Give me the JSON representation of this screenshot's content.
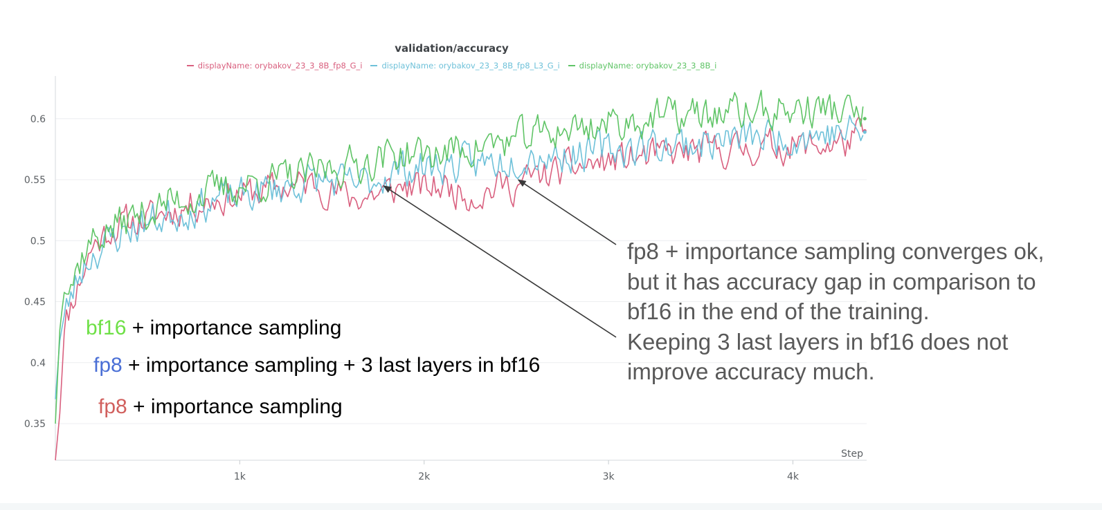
{
  "chart_data": {
    "type": "line",
    "title": "validation/accuracy",
    "xlabel": "Step",
    "ylabel": "",
    "xlim": [
      0,
      4400
    ],
    "ylim": [
      0.32,
      0.635
    ],
    "x_ticks": [
      {
        "value": 1000,
        "label": "1k"
      },
      {
        "value": 2000,
        "label": "2k"
      },
      {
        "value": 3000,
        "label": "3k"
      },
      {
        "value": 4000,
        "label": "4k"
      }
    ],
    "y_ticks": [
      {
        "value": 0.35,
        "label": "0.35"
      },
      {
        "value": 0.4,
        "label": "0.4"
      },
      {
        "value": 0.45,
        "label": "0.45"
      },
      {
        "value": 0.5,
        "label": "0.5"
      },
      {
        "value": 0.55,
        "label": "0.55"
      },
      {
        "value": 0.6,
        "label": "0.6"
      }
    ],
    "grid": true,
    "legend_position": "top-center",
    "series": [
      {
        "name": "displayName: orybakov_23_3_8B_fp8_G_i",
        "color": "#d9607f",
        "x": [
          0,
          25,
          50,
          100,
          150,
          200,
          300,
          400,
          500,
          600,
          700,
          800,
          900,
          1000,
          1100,
          1200,
          1300,
          1400,
          1500,
          1600,
          1700,
          1800,
          1900,
          2000,
          2100,
          2200,
          2300,
          2400,
          2500,
          2600,
          2700,
          2800,
          2900,
          3000,
          3100,
          3200,
          3300,
          3400,
          3500,
          3600,
          3700,
          3800,
          3900,
          4000,
          4100,
          4200,
          4300,
          4390
        ],
        "y": [
          0.32,
          0.36,
          0.43,
          0.455,
          0.475,
          0.495,
          0.51,
          0.515,
          0.518,
          0.523,
          0.528,
          0.532,
          0.535,
          0.538,
          0.54,
          0.543,
          0.545,
          0.547,
          0.542,
          0.535,
          0.537,
          0.54,
          0.545,
          0.542,
          0.545,
          0.54,
          0.538,
          0.545,
          0.545,
          0.552,
          0.555,
          0.56,
          0.562,
          0.565,
          0.567,
          0.568,
          0.57,
          0.572,
          0.573,
          0.574,
          0.575,
          0.576,
          0.577,
          0.578,
          0.578,
          0.579,
          0.58,
          0.59
        ]
      },
      {
        "name": "displayName: orybakov_23_3_8B_fp8_L3_G_i",
        "color": "#6ec1d9",
        "x": [
          0,
          25,
          50,
          100,
          150,
          200,
          300,
          400,
          500,
          600,
          700,
          800,
          900,
          1000,
          1100,
          1200,
          1300,
          1400,
          1500,
          1600,
          1700,
          1800,
          1900,
          2000,
          2100,
          2200,
          2300,
          2400,
          2500,
          2600,
          2700,
          2800,
          2900,
          3000,
          3100,
          3200,
          3300,
          3400,
          3500,
          3600,
          3700,
          3800,
          3900,
          4000,
          4100,
          4200,
          4300,
          4390
        ],
        "y": [
          0.37,
          0.42,
          0.44,
          0.46,
          0.48,
          0.49,
          0.5,
          0.51,
          0.515,
          0.52,
          0.525,
          0.53,
          0.535,
          0.535,
          0.54,
          0.543,
          0.546,
          0.55,
          0.548,
          0.545,
          0.548,
          0.555,
          0.56,
          0.56,
          0.562,
          0.562,
          0.563,
          0.565,
          0.57,
          0.572,
          0.57,
          0.572,
          0.572,
          0.575,
          0.576,
          0.578,
          0.578,
          0.58,
          0.58,
          0.582,
          0.583,
          0.585,
          0.585,
          0.586,
          0.587,
          0.588,
          0.589,
          0.589
        ]
      },
      {
        "name": "displayName: orybakov_23_3_8B_i",
        "color": "#5fc466",
        "x": [
          0,
          25,
          50,
          100,
          150,
          200,
          300,
          400,
          500,
          600,
          700,
          800,
          900,
          1000,
          1100,
          1200,
          1300,
          1400,
          1500,
          1600,
          1700,
          1800,
          1900,
          2000,
          2100,
          2200,
          2300,
          2400,
          2500,
          2600,
          2700,
          2800,
          2900,
          3000,
          3100,
          3200,
          3300,
          3400,
          3500,
          3600,
          3700,
          3800,
          3900,
          4000,
          4100,
          4200,
          4300,
          4390
        ],
        "y": [
          0.35,
          0.43,
          0.46,
          0.47,
          0.49,
          0.5,
          0.51,
          0.518,
          0.523,
          0.53,
          0.535,
          0.538,
          0.542,
          0.545,
          0.548,
          0.55,
          0.552,
          0.555,
          0.56,
          0.562,
          0.565,
          0.57,
          0.572,
          0.57,
          0.572,
          0.575,
          0.578,
          0.58,
          0.582,
          0.586,
          0.59,
          0.592,
          0.594,
          0.596,
          0.598,
          0.6,
          0.601,
          0.602,
          0.603,
          0.604,
          0.605,
          0.606,
          0.606,
          0.607,
          0.607,
          0.608,
          0.605,
          0.6
        ]
      }
    ],
    "annotations": [
      {
        "parts": [
          {
            "text": "bf16",
            "color": "#6ee046"
          },
          {
            "text": " + importance sampling",
            "color": "#000000"
          }
        ]
      },
      {
        "parts": [
          {
            "text": "fp8",
            "color": "#4a6fd6"
          },
          {
            "text": " + importance sampling + 3 last layers in bf16",
            "color": "#000000"
          }
        ]
      },
      {
        "parts": [
          {
            "text": "fp8",
            "color": "#d1605e"
          },
          {
            "text": " + importance sampling",
            "color": "#000000"
          }
        ]
      }
    ],
    "callout": [
      "fp8 + importance sampling converges ok,",
      "but it has accuracy gap in comparison to",
      "bf16 in the end of the training.",
      "Keeping 3 last layers in bf16 does not",
      "improve accuracy much."
    ],
    "arrows": [
      {
        "target_x": 1780,
        "target_y": 0.545
      },
      {
        "target_x": 2510,
        "target_y": 0.55
      }
    ]
  }
}
